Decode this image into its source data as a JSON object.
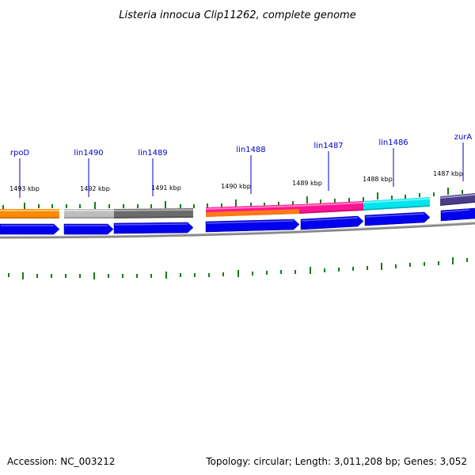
{
  "title": "Listeria innocua Clip11262, complete genome",
  "accession": "Accession: NC_003212",
  "summary": "Topology: circular; Length: 3,011,208 bp; Genes: 3,052",
  "ruler": [
    {
      "label": "1493 kbp"
    },
    {
      "label": "1492 kbp"
    },
    {
      "label": "1491 kbp"
    },
    {
      "label": "1490 kbp"
    },
    {
      "label": "1489 kbp"
    },
    {
      "label": "1488 kbp"
    },
    {
      "label": "1487 kbp"
    }
  ],
  "genes": [
    {
      "name": "rpoD",
      "color": "#ff8c00"
    },
    {
      "name": "lin1490",
      "color": "#bdbdbd"
    },
    {
      "name": "lin1489",
      "color": "#6b6b6b"
    },
    {
      "name": "lin1488",
      "color": "#ff1493"
    },
    {
      "name": "lin1487",
      "color": "#ff1493"
    },
    {
      "name": "lin1486",
      "color": "#00e5ee"
    },
    {
      "name": "zurA",
      "color": "#483d8b"
    }
  ],
  "colors": {
    "cds_arrow": "#0000ee",
    "tick": "#1a7a1a",
    "backbone": "#808080",
    "label_line": "#0000cc"
  }
}
